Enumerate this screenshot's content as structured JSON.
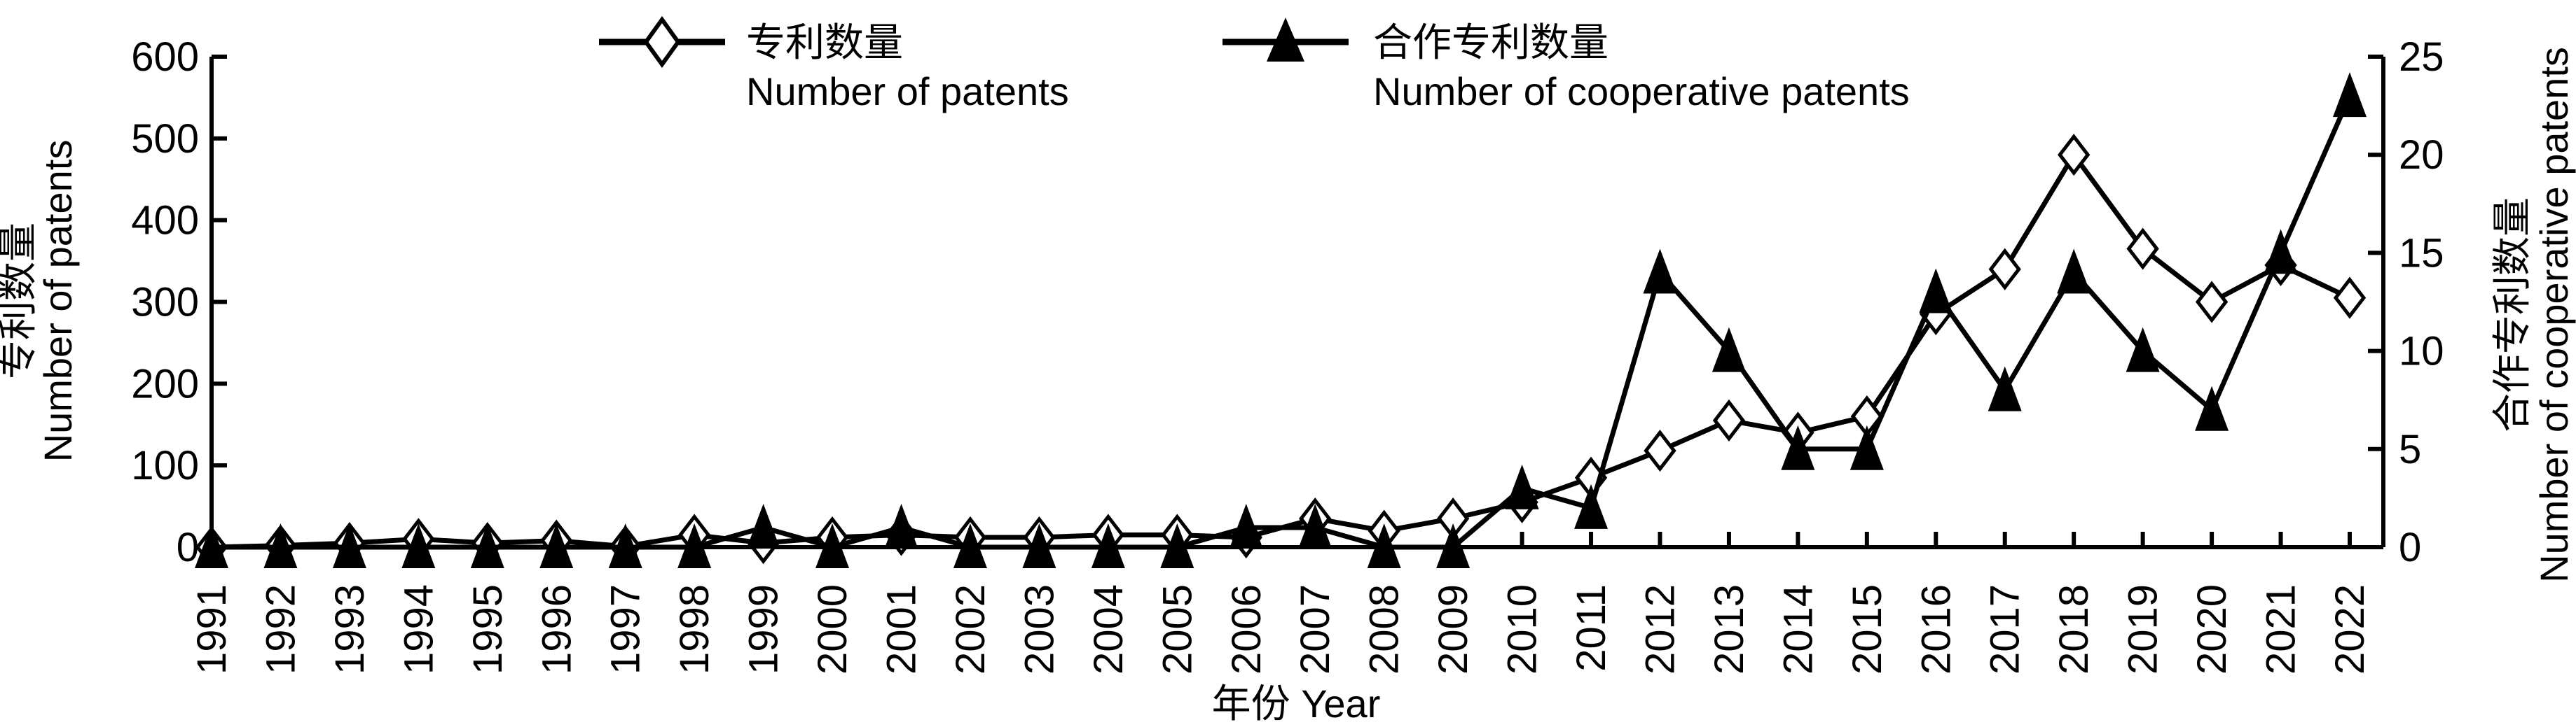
{
  "chart_data": {
    "type": "line",
    "x": [
      1991,
      1992,
      1993,
      1994,
      1995,
      1996,
      1997,
      1998,
      1999,
      2000,
      2001,
      2002,
      2003,
      2004,
      2005,
      2006,
      2007,
      2008,
      2009,
      2010,
      2011,
      2012,
      2013,
      2014,
      2015,
      2016,
      2017,
      2018,
      2019,
      2020,
      2021,
      2022
    ],
    "x_tick_labels": [
      "1991",
      "1992",
      "1993",
      "1994",
      "1995",
      "1996",
      "1997",
      "1998",
      "1999",
      "2000",
      "2001",
      "2002",
      "2003",
      "2004",
      "2005",
      "2006",
      "2007",
      "2008",
      "2009",
      "2010",
      "2011",
      "2012",
      "2013",
      "2014",
      "2015",
      "2016",
      "2017",
      "2018",
      "2019",
      "2020",
      "2021",
      "2022"
    ],
    "xlabel": "年份 Year",
    "ylabel_left": [
      "专利数量",
      "Number of patents"
    ],
    "ylabel_right": [
      "合作专利数量",
      "Number of cooperative patents"
    ],
    "ylim_left": [
      0,
      600
    ],
    "ylim_right": [
      0,
      25
    ],
    "y_ticks_left": [
      "0",
      "100",
      "200",
      "300",
      "400",
      "500",
      "600"
    ],
    "y_ticks_right": [
      "0",
      "5",
      "10",
      "15",
      "20",
      "25"
    ],
    "grid": false,
    "legend_position": "top",
    "series": [
      {
        "name": "专利数量",
        "name_en": "Number of patents",
        "axis": "left",
        "marker": "open-diamond",
        "values": [
          0,
          2,
          5,
          10,
          5,
          8,
          1,
          15,
          5,
          12,
          15,
          12,
          12,
          15,
          15,
          12,
          35,
          20,
          35,
          55,
          85,
          118,
          155,
          140,
          160,
          285,
          340,
          480,
          365,
          300,
          345,
          305
        ]
      },
      {
        "name": "合作专利数量",
        "name_en": "Number of cooperative patents",
        "axis": "right",
        "marker": "filled-triangle",
        "values": [
          0,
          0,
          0,
          0,
          0,
          0,
          0,
          0,
          1,
          0,
          1,
          0,
          0,
          0,
          0,
          1,
          1,
          0,
          0,
          3,
          2,
          14,
          10,
          5,
          5,
          13,
          8,
          14,
          10,
          7,
          15,
          23
        ]
      }
    ]
  }
}
